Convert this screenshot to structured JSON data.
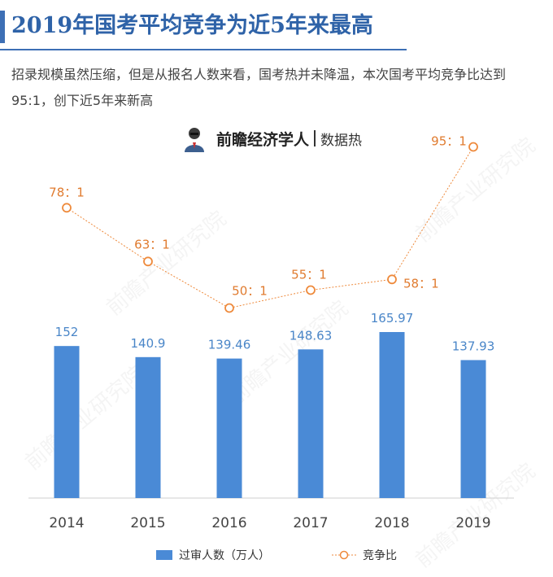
{
  "header": {
    "title": "2019年国考平均竞争为近5年来最高",
    "subtitle": "招录规模虽然压缩，但是从报名人数来看，国考热并未降温，本次国考平均竞争比达到95:1，创下近5年来新高"
  },
  "brand": {
    "name": "前瞻经济学人",
    "tag": "数据热",
    "watermark": "前瞻产业研究院"
  },
  "colors": {
    "bar": "#4a8ad6",
    "line": "#ee8a3c",
    "bar_label": "#4a86c8",
    "line_label": "#e07b2f"
  },
  "chart_data": {
    "type": "bar+line",
    "categories": [
      "2014",
      "2015",
      "2016",
      "2017",
      "2018",
      "2019"
    ],
    "series": [
      {
        "name": "过审人数（万人）",
        "type": "bar",
        "values": [
          152,
          140.9,
          139.46,
          148.63,
          165.97,
          137.93
        ],
        "labels": [
          "152",
          "140.9",
          "139.46",
          "148.63",
          "165.97",
          "137.93"
        ]
      },
      {
        "name": "竞争比",
        "type": "line",
        "values": [
          78,
          63,
          50,
          55,
          58,
          95
        ],
        "labels": [
          "78：1",
          "63：1",
          "50：1",
          "55：1",
          "58：1",
          "95：1"
        ]
      }
    ],
    "legend": "bottom"
  }
}
